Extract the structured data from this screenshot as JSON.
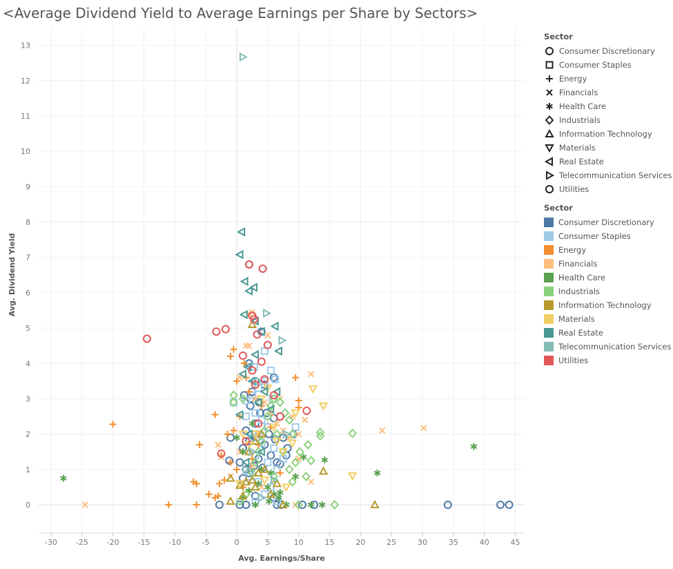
{
  "title": "<Average Dividend Yield to Average Earnings per Share by Sectors>",
  "legends": {
    "shape_title": "Sector",
    "color_title": "Sector"
  },
  "sectors": [
    {
      "name": "Consumer Discretionary",
      "color": "#4e79a7",
      "shape": "circle"
    },
    {
      "name": "Consumer Staples",
      "color": "#a0cbe8",
      "shape": "square"
    },
    {
      "name": "Energy",
      "color": "#f28e2b",
      "shape": "plus"
    },
    {
      "name": "Financials",
      "color": "#ffbe7d",
      "shape": "cross"
    },
    {
      "name": "Health Care",
      "color": "#59a14f",
      "shape": "asterisk"
    },
    {
      "name": "Industrials",
      "color": "#8cd17d",
      "shape": "diamond"
    },
    {
      "name": "Information Technology",
      "color": "#b6992d",
      "shape": "triangle-up"
    },
    {
      "name": "Materials",
      "color": "#f1ce63",
      "shape": "triangle-down"
    },
    {
      "name": "Real Estate",
      "color": "#499894",
      "shape": "triangle-left"
    },
    {
      "name": "Telecommunication Services",
      "color": "#86bcb6",
      "shape": "triangle-right"
    },
    {
      "name": "Utilities",
      "color": "#e15759",
      "shape": "circle"
    }
  ],
  "chart_data": {
    "type": "scatter",
    "title": "<Average Dividend Yield to Average Earnings per Share by Sectors>",
    "xlabel": "Avg. Earnings/Share",
    "ylabel": "Avg. Dividend Yield",
    "xlim": [
      -32,
      46.5
    ],
    "ylim": [
      -0.8,
      13.5
    ],
    "xticks": [
      -30,
      -25,
      -20,
      -15,
      -10,
      -5,
      0,
      5,
      10,
      15,
      20,
      25,
      30,
      35,
      40,
      45
    ],
    "yticks": [
      0,
      1,
      2,
      3,
      4,
      5,
      6,
      7,
      8,
      9,
      10,
      11,
      12,
      13
    ],
    "grid": true,
    "legend_position": "right",
    "series": [
      {
        "name": "Consumer Discretionary",
        "points": [
          [
            34.1,
            0
          ],
          [
            42.6,
            0
          ],
          [
            44.0,
            0
          ],
          [
            10.6,
            0
          ],
          [
            12.5,
            0
          ],
          [
            -2.8,
            0
          ],
          [
            0.5,
            0
          ],
          [
            1.5,
            0
          ],
          [
            3.0,
            0.25
          ],
          [
            6.0,
            0.2
          ],
          [
            6.5,
            0
          ],
          [
            7.2,
            0
          ],
          [
            -1.2,
            1.25
          ],
          [
            0.5,
            1.2
          ],
          [
            1.5,
            1.0
          ],
          [
            2.0,
            0.9
          ],
          [
            2.8,
            1.1
          ],
          [
            3.5,
            1.3
          ],
          [
            4.2,
            1.05
          ],
          [
            5.5,
            1.4
          ],
          [
            6.5,
            1.2
          ],
          [
            7.0,
            1.15
          ],
          [
            1.0,
            1.6
          ],
          [
            2.0,
            1.8
          ],
          [
            3.2,
            1.9
          ],
          [
            4.5,
            1.7
          ],
          [
            5.2,
            2.0
          ],
          [
            6.2,
            1.85
          ],
          [
            7.5,
            1.9
          ],
          [
            8.2,
            1.6
          ],
          [
            9.2,
            2.0
          ],
          [
            -1.0,
            1.9
          ],
          [
            1.5,
            2.1
          ],
          [
            3.0,
            2.3
          ],
          [
            3.8,
            2.6
          ],
          [
            4.8,
            2.6
          ],
          [
            6.0,
            2.45
          ],
          [
            7.0,
            2.5
          ],
          [
            2.2,
            2.8
          ],
          [
            3.6,
            2.9
          ],
          [
            1.2,
            3.1
          ],
          [
            2.5,
            3.2
          ],
          [
            3.0,
            3.5
          ],
          [
            4.5,
            3.4
          ],
          [
            6.0,
            3.6
          ],
          [
            2.0,
            4.0
          ],
          [
            4.0,
            4.9
          ],
          [
            2.0,
            6.8
          ],
          [
            2.2,
            3.0
          ],
          [
            5.0,
            2.2
          ],
          [
            8.0,
            1.4
          ],
          [
            1.0,
            0.75
          ]
        ]
      },
      {
        "name": "Consumer Staples",
        "points": [
          [
            -0.5,
            2.9
          ],
          [
            1.5,
            2.95
          ],
          [
            2.5,
            3.1
          ],
          [
            3.5,
            3.3
          ],
          [
            4.5,
            3.5
          ],
          [
            5.5,
            3.8
          ],
          [
            6.2,
            3.55
          ],
          [
            4.5,
            4.35
          ],
          [
            3.0,
            2.6
          ],
          [
            4.0,
            2.4
          ],
          [
            5.0,
            2.2
          ],
          [
            3.5,
            2.0
          ],
          [
            2.5,
            1.9
          ],
          [
            4.0,
            1.75
          ],
          [
            6.0,
            1.6
          ],
          [
            3.0,
            1.4
          ],
          [
            5.0,
            1.2
          ],
          [
            7.5,
            1.3
          ],
          [
            9.5,
            2.2
          ],
          [
            6.5,
            1.0
          ],
          [
            2.0,
            0.8
          ],
          [
            3.5,
            0.65
          ],
          [
            5.5,
            0.5
          ],
          [
            4.5,
            0.3
          ],
          [
            3.0,
            0.1
          ],
          [
            6.5,
            0.1
          ],
          [
            2.8,
            3.9
          ],
          [
            1.5,
            2.5
          ],
          [
            5.8,
            3.0
          ]
        ]
      },
      {
        "name": "Energy",
        "points": [
          [
            -20.0,
            2.28
          ],
          [
            -11.0,
            0
          ],
          [
            -6.5,
            0
          ],
          [
            -6.0,
            1.7
          ],
          [
            -7.0,
            0.65
          ],
          [
            -6.5,
            0.6
          ],
          [
            -4.5,
            0.3
          ],
          [
            -3.5,
            0.2
          ],
          [
            -3.0,
            0.25
          ],
          [
            -3.5,
            2.55
          ],
          [
            -2.8,
            0.6
          ],
          [
            -2.0,
            0.7
          ],
          [
            -2.5,
            1.4
          ],
          [
            -1.5,
            2.0
          ],
          [
            -1.0,
            1.2
          ],
          [
            -0.5,
            2.1
          ],
          [
            0,
            1.0
          ],
          [
            0.5,
            2.5
          ],
          [
            -1.0,
            4.2
          ],
          [
            -0.5,
            4.4
          ],
          [
            0,
            3.5
          ],
          [
            1.5,
            3.6
          ],
          [
            1.2,
            4.0
          ],
          [
            2.0,
            3.2
          ],
          [
            9.5,
            3.6
          ],
          [
            10.0,
            2.95
          ],
          [
            10.0,
            2.75
          ],
          [
            2.5,
            1.3
          ],
          [
            3.5,
            1.7
          ],
          [
            5.5,
            2.2
          ],
          [
            7.0,
            0.9
          ],
          [
            1.0,
            0.5
          ],
          [
            4.0,
            2.8
          ]
        ]
      },
      {
        "name": "Financials",
        "points": [
          [
            -24.5,
            0
          ],
          [
            -3.0,
            1.7
          ],
          [
            -2.5,
            1.35
          ],
          [
            -1.0,
            0.8
          ],
          [
            0.5,
            1.5
          ],
          [
            1.5,
            4.5
          ],
          [
            2.0,
            5.4
          ],
          [
            2.5,
            5.45
          ],
          [
            2.0,
            4.5
          ],
          [
            0.5,
            3.6
          ],
          [
            3.0,
            3.0
          ],
          [
            4.5,
            2.9
          ],
          [
            5.5,
            2.6
          ],
          [
            6.5,
            2.3
          ],
          [
            7.5,
            2.1
          ],
          [
            8.5,
            1.9
          ],
          [
            9.0,
            2.5
          ],
          [
            10.0,
            2.0
          ],
          [
            11.0,
            2.4
          ],
          [
            12.0,
            3.7
          ],
          [
            12.0,
            0.65
          ],
          [
            23.5,
            2.1
          ],
          [
            30.2,
            2.17
          ],
          [
            10.0,
            1.3
          ],
          [
            6.0,
            0.7
          ],
          [
            4.0,
            0.5
          ],
          [
            2.5,
            1.1
          ],
          [
            9.5,
            0
          ],
          [
            5.0,
            4.8
          ],
          [
            3.5,
            2.0
          ],
          [
            7.0,
            3.0
          ]
        ]
      },
      {
        "name": "Health Care",
        "points": [
          [
            -28.0,
            0.75
          ],
          [
            38.3,
            1.65
          ],
          [
            22.7,
            0.9
          ],
          [
            14.2,
            1.27
          ],
          [
            13.8,
            0
          ],
          [
            12.0,
            0
          ],
          [
            10.8,
            1.35
          ],
          [
            9.5,
            0.8
          ],
          [
            7.0,
            0.35
          ],
          [
            6.0,
            0.3
          ],
          [
            5.0,
            0.5
          ],
          [
            3.5,
            0.6
          ],
          [
            2.0,
            0.4
          ],
          [
            1.0,
            0.2
          ],
          [
            0,
            1.9
          ],
          [
            1.0,
            1.5
          ],
          [
            2.5,
            2.3
          ],
          [
            4.0,
            1.0
          ],
          [
            5.5,
            0.9
          ],
          [
            6.8,
            0.2
          ],
          [
            8.0,
            0
          ],
          [
            3.0,
            0
          ],
          [
            5.2,
            0.1
          ]
        ]
      },
      {
        "name": "Industrials",
        "points": [
          [
            15.8,
            0
          ],
          [
            18.7,
            2.02
          ],
          [
            13.5,
            2.05
          ],
          [
            13.5,
            1.95
          ],
          [
            12.0,
            1.25
          ],
          [
            11.2,
            0.8
          ],
          [
            10.2,
            1.5
          ],
          [
            9.5,
            1.2
          ],
          [
            9.0,
            0.65
          ],
          [
            8.5,
            2.4
          ],
          [
            7.8,
            2.6
          ],
          [
            7.0,
            2.9
          ],
          [
            6.0,
            3.0
          ],
          [
            5.5,
            2.8
          ],
          [
            5.0,
            2.5
          ],
          [
            4.5,
            2.1
          ],
          [
            4.0,
            1.8
          ],
          [
            3.5,
            1.5
          ],
          [
            3.0,
            1.2
          ],
          [
            2.5,
            0.9
          ],
          [
            1.5,
            0.3
          ],
          [
            0.5,
            0.1
          ],
          [
            -0.5,
            3.1
          ],
          [
            -0.5,
            2.9
          ],
          [
            1.0,
            3.0
          ],
          [
            6.5,
            2.0
          ],
          [
            7.5,
            1.5
          ],
          [
            8.5,
            1.0
          ],
          [
            6.0,
            0.8
          ],
          [
            10.0,
            0
          ],
          [
            9.0,
            2.0
          ],
          [
            11.5,
            1.7
          ]
        ]
      },
      {
        "name": "Information Technology",
        "points": [
          [
            22.3,
            0
          ],
          [
            14.0,
            0.95
          ],
          [
            2.5,
            5.1
          ],
          [
            -1.0,
            0.75
          ],
          [
            -1.0,
            0.1
          ],
          [
            0.5,
            0.55
          ],
          [
            1.5,
            0.65
          ],
          [
            2.5,
            0.7
          ],
          [
            3.5,
            0.9
          ],
          [
            4.5,
            1.0
          ],
          [
            3.0,
            0.5
          ],
          [
            1.0,
            0.25
          ],
          [
            5.5,
            0.3
          ],
          [
            6.5,
            0.6
          ],
          [
            2.0,
            1.5
          ],
          [
            4.0,
            2.0
          ],
          [
            7.5,
            0
          ],
          [
            3.0,
            1.8
          ]
        ]
      },
      {
        "name": "Materials",
        "points": [
          [
            18.7,
            0.82
          ],
          [
            14.0,
            2.8
          ],
          [
            12.3,
            3.28
          ],
          [
            9.5,
            2.6
          ],
          [
            9.0,
            1.75
          ],
          [
            7.5,
            1.5
          ],
          [
            6.5,
            1.8
          ],
          [
            6.0,
            2.2
          ],
          [
            5.0,
            3.3
          ],
          [
            4.0,
            3.0
          ],
          [
            3.0,
            2.0
          ],
          [
            2.0,
            1.7
          ],
          [
            1.0,
            2.0
          ],
          [
            4.5,
            0.7
          ],
          [
            8.0,
            0.5
          ],
          [
            0.5,
            0.6
          ]
        ]
      },
      {
        "name": "Real Estate",
        "points": [
          [
            0.8,
            7.72
          ],
          [
            0.5,
            7.08
          ],
          [
            1.3,
            6.32
          ],
          [
            2.0,
            6.05
          ],
          [
            2.8,
            6.15
          ],
          [
            1.2,
            5.38
          ],
          [
            3.0,
            5.2
          ],
          [
            6.2,
            5.05
          ],
          [
            4.0,
            4.9
          ],
          [
            6.8,
            4.35
          ],
          [
            3.0,
            4.25
          ],
          [
            1.8,
            3.9
          ],
          [
            1.0,
            3.7
          ],
          [
            2.5,
            3.5
          ],
          [
            4.5,
            3.2
          ],
          [
            6.5,
            3.2
          ],
          [
            3.5,
            2.9
          ],
          [
            5.5,
            2.7
          ],
          [
            0.5,
            2.55
          ],
          [
            2.0,
            2.0
          ],
          [
            4.0,
            1.5
          ],
          [
            1.5,
            1.2
          ]
        ]
      },
      {
        "name": "Telecommunication Services",
        "points": [
          [
            1.0,
            12.67
          ],
          [
            4.8,
            5.42
          ],
          [
            7.3,
            4.65
          ],
          [
            2.5,
            1.5
          ],
          [
            1.5,
            1.0
          ],
          [
            6.0,
            0.7
          ],
          [
            4.0,
            0.2
          ],
          [
            3.5,
            3.5
          ],
          [
            8.0,
            2.0
          ]
        ]
      },
      {
        "name": "Utilities",
        "points": [
          [
            -14.5,
            4.7
          ],
          [
            -3.3,
            4.9
          ],
          [
            -1.8,
            4.97
          ],
          [
            2.0,
            6.8
          ],
          [
            4.2,
            6.68
          ],
          [
            2.5,
            5.35
          ],
          [
            2.8,
            5.25
          ],
          [
            3.3,
            4.82
          ],
          [
            5.0,
            4.52
          ],
          [
            1.0,
            4.22
          ],
          [
            4.0,
            4.05
          ],
          [
            2.5,
            3.8
          ],
          [
            4.5,
            3.55
          ],
          [
            3.0,
            3.4
          ],
          [
            6.0,
            3.1
          ],
          [
            11.3,
            2.66
          ],
          [
            7.0,
            2.5
          ],
          [
            -2.5,
            1.45
          ],
          [
            1.5,
            1.8
          ],
          [
            3.5,
            2.3
          ]
        ]
      }
    ]
  }
}
